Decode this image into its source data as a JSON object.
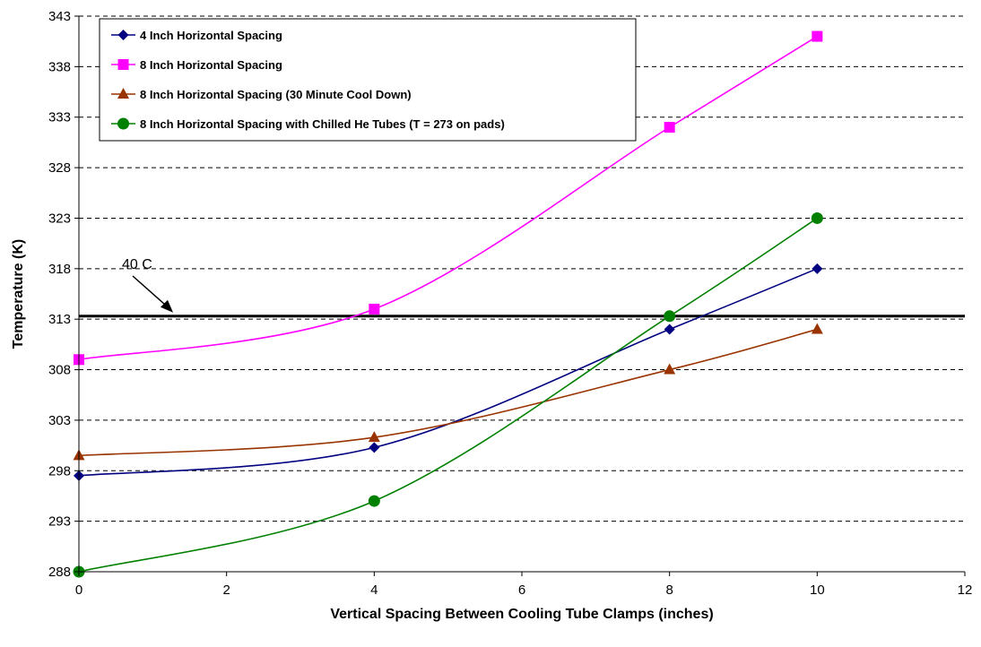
{
  "chart_data": {
    "type": "line",
    "title": "",
    "xlabel": "Vertical Spacing Between Cooling Tube Clamps (inches)",
    "ylabel": "Temperature (K)",
    "xlim": [
      0,
      12
    ],
    "ylim": [
      288,
      343
    ],
    "x_ticks": [
      0,
      2,
      4,
      6,
      8,
      10,
      12
    ],
    "y_ticks": [
      288,
      293,
      298,
      303,
      308,
      313,
      318,
      323,
      328,
      333,
      338,
      343
    ],
    "grid": "horizontal dashed",
    "legend_position": "top-left",
    "series": [
      {
        "name": "4 Inch Horizontal Spacing",
        "color": "#000080",
        "marker": "diamond",
        "x": [
          0,
          4,
          8,
          10
        ],
        "y": [
          297.5,
          300.3,
          312,
          318
        ]
      },
      {
        "name": "8 Inch Horizontal Spacing",
        "color": "#FF00FF",
        "marker": "square",
        "x": [
          0,
          4,
          8,
          10
        ],
        "y": [
          309,
          314,
          332,
          341
        ]
      },
      {
        "name": "8 Inch Horizontal Spacing (30 Minute Cool Down)",
        "color": "#993300",
        "marker": "triangle",
        "x": [
          0,
          4,
          8,
          10
        ],
        "y": [
          299.5,
          301.3,
          308,
          312
        ]
      },
      {
        "name": "8 Inch Horizontal Spacing with Chilled He Tubes (T = 273 on pads)",
        "color": "#008000",
        "marker": "circle",
        "x": [
          0,
          4,
          8,
          10
        ],
        "y": [
          288,
          295,
          313.3,
          323
        ]
      }
    ],
    "reference_line": {
      "y": 313.3,
      "label": "40 C",
      "color": "#000000"
    }
  }
}
